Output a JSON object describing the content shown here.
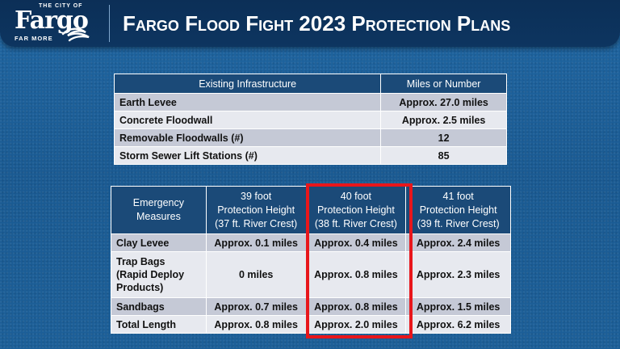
{
  "logo": {
    "city": "THE CITY OF",
    "name": "Fargo",
    "tagline": "FAR MORE"
  },
  "title": "Fargo Flood Fight 2023 Protection Plans",
  "infrastructure": {
    "headers": [
      "Existing Infrastructure",
      "Miles or Number"
    ],
    "rows": [
      [
        "Earth Levee",
        "Approx. 27.0 miles"
      ],
      [
        "Concrete Floodwall",
        "Approx. 2.5 miles"
      ],
      [
        "Removable Floodwalls (#)",
        "12"
      ],
      [
        "Storm Sewer Lift Stations (#)",
        "85"
      ]
    ]
  },
  "emergency": {
    "headers": [
      [
        "Emergency",
        "Measures"
      ],
      [
        "39 foot",
        "Protection Height",
        "(37 ft. River Crest)"
      ],
      [
        "40 foot",
        "Protection Height",
        "(38 ft. River Crest)"
      ],
      [
        "41 foot",
        "Protection Height",
        "(39 ft. River Crest)"
      ]
    ],
    "rows": [
      {
        "measure": [
          "Clay Levee"
        ],
        "values": [
          "Approx. 0.1 miles",
          "Approx. 0.4 miles",
          "Approx. 2.4 miles"
        ]
      },
      {
        "measure": [
          "Trap Bags",
          "(Rapid Deploy",
          "Products)"
        ],
        "values": [
          "0 miles",
          "Approx. 0.8 miles",
          "Approx. 2.3 miles"
        ]
      },
      {
        "measure": [
          "Sandbags"
        ],
        "values": [
          "Approx. 0.7 miles",
          "Approx. 0.8 miles",
          "Approx. 1.5 miles"
        ]
      },
      {
        "measure": [
          "Total Length"
        ],
        "values": [
          "Approx. 0.8 miles",
          "Approx. 2.0 miles",
          "Approx. 6.2 miles"
        ]
      }
    ]
  },
  "colors": {
    "header_bg": "#0c2f57",
    "table_header": "#1b4a78",
    "highlight": "#e8161b"
  }
}
